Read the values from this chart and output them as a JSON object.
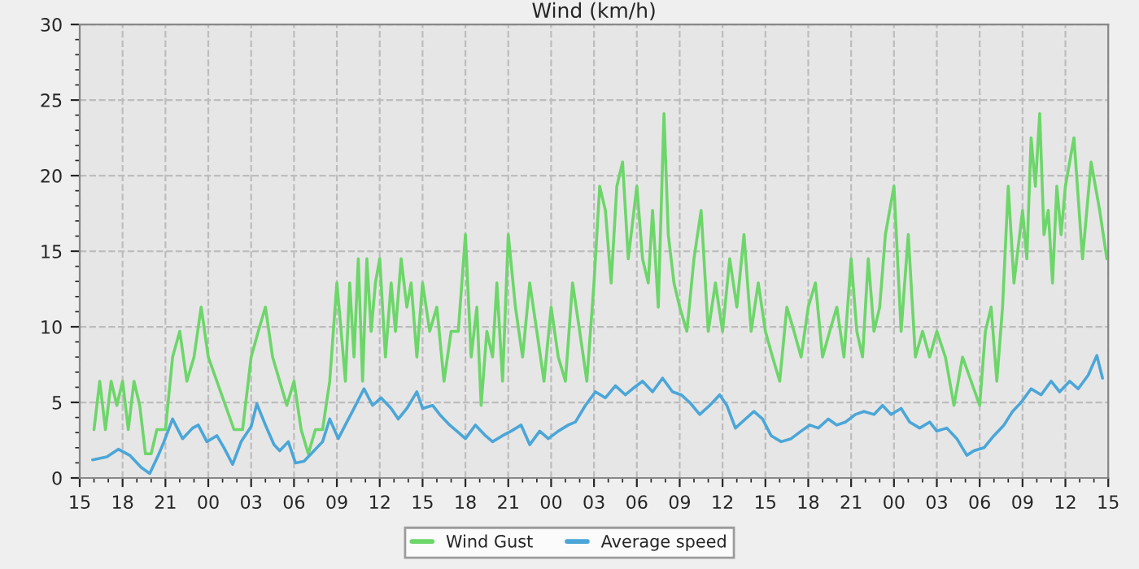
{
  "chart_data": {
    "type": "line",
    "title": "Wind (km/h)",
    "xlim": [
      15,
      87
    ],
    "ylim": [
      0,
      30
    ],
    "yticks": [
      0,
      5,
      10,
      15,
      20,
      25,
      30
    ],
    "xticks": [
      15,
      18,
      21,
      {
        "value": 24,
        "label": "00"
      },
      {
        "value": 27,
        "label": "03"
      },
      {
        "value": 30,
        "label": "06"
      },
      {
        "value": 33,
        "label": "09"
      },
      {
        "value": 36,
        "label": "12"
      },
      {
        "value": 39,
        "label": "15"
      },
      {
        "value": 42,
        "label": "18"
      },
      {
        "value": 45,
        "label": "21"
      },
      {
        "value": 48,
        "label": "00"
      },
      {
        "value": 51,
        "label": "03"
      },
      {
        "value": 54,
        "label": "06"
      },
      {
        "value": 57,
        "label": "09"
      },
      {
        "value": 60,
        "label": "12"
      },
      {
        "value": 63,
        "label": "15"
      },
      {
        "value": 66,
        "label": "18"
      },
      {
        "value": 69,
        "label": "21"
      },
      {
        "value": 72,
        "label": "00"
      },
      {
        "value": 75,
        "label": "03"
      },
      {
        "value": 78,
        "label": "06"
      },
      {
        "value": 81,
        "label": "09"
      },
      {
        "value": 84,
        "label": "12"
      },
      {
        "value": 87,
        "label": "15"
      }
    ],
    "grid": true,
    "legend": "bottom",
    "marker": "none",
    "line_style": "solid",
    "series": [
      {
        "name": "Wind Gust",
        "color": "#6dd66a",
        "x": [
          16,
          16.4,
          16.8,
          17.2,
          17.6,
          18,
          18.4,
          18.8,
          19.2,
          19.6,
          20,
          20.4,
          21,
          21.5,
          22,
          22.5,
          23,
          23.5,
          24,
          24.6,
          25.2,
          25.8,
          26.4,
          27,
          27.5,
          28,
          28.5,
          29,
          29.5,
          30,
          30.5,
          31,
          31.5,
          32,
          32.5,
          33,
          33.3,
          33.6,
          33.9,
          34.2,
          34.5,
          34.8,
          35.1,
          35.4,
          35.7,
          36,
          36.4,
          36.8,
          37.1,
          37.5,
          37.9,
          38.2,
          38.6,
          39,
          39.5,
          40,
          40.5,
          41,
          41.5,
          42,
          42.4,
          42.8,
          43.1,
          43.5,
          43.9,
          44.2,
          44.6,
          45,
          45.5,
          46,
          46.5,
          47,
          47.5,
          48,
          48.5,
          49,
          49.5,
          50,
          50.5,
          51,
          51.4,
          51.8,
          52.2,
          52.6,
          53,
          53.4,
          54,
          54.4,
          54.8,
          55.1,
          55.5,
          55.9,
          56.2,
          56.6,
          57,
          57.5,
          58,
          58.5,
          59,
          59.5,
          60,
          60.5,
          61,
          61.5,
          62,
          62.5,
          63,
          63.5,
          64,
          64.5,
          65,
          65.5,
          66,
          66.5,
          67,
          67.5,
          68,
          68.5,
          69,
          69.4,
          69.8,
          70.2,
          70.6,
          71,
          71.4,
          72,
          72.5,
          73,
          73.5,
          74,
          74.5,
          75,
          75.6,
          76.2,
          76.8,
          77.4,
          78,
          78.4,
          78.8,
          79.2,
          79.6,
          80,
          80.4,
          81,
          81.3,
          81.6,
          81.9,
          82.2,
          82.5,
          82.8,
          83.1,
          83.4,
          83.7,
          84,
          84.6,
          85.2,
          85.8,
          86.4,
          86.9
        ],
        "values": [
          3.2,
          6.4,
          3.2,
          6.4,
          4.8,
          6.4,
          3.2,
          6.4,
          4.8,
          1.6,
          1.6,
          3.2,
          3.2,
          8,
          9.7,
          6.4,
          8,
          11.3,
          8,
          6.4,
          4.8,
          3.2,
          3.2,
          8,
          9.7,
          11.3,
          8,
          6.4,
          4.8,
          6.4,
          3.2,
          1.6,
          3.2,
          3.2,
          6.4,
          12.9,
          9.7,
          6.4,
          12.9,
          8,
          14.5,
          6.4,
          14.5,
          9.7,
          12.9,
          14.5,
          8,
          12.9,
          9.7,
          14.5,
          11.3,
          12.9,
          8,
          12.9,
          9.7,
          11.3,
          6.4,
          9.7,
          9.7,
          16.1,
          8,
          11.3,
          4.8,
          9.7,
          8,
          12.9,
          6.4,
          16.1,
          11.3,
          8,
          12.9,
          9.7,
          6.4,
          11.3,
          8,
          6.4,
          12.9,
          9.7,
          6.4,
          12.9,
          19.3,
          17.7,
          12.9,
          19.3,
          20.9,
          14.5,
          19.3,
          14.5,
          12.9,
          17.7,
          11.3,
          24.1,
          16.1,
          12.9,
          11.3,
          9.7,
          14.5,
          17.7,
          9.7,
          12.9,
          9.7,
          14.5,
          11.3,
          16.1,
          9.7,
          12.9,
          9.7,
          8,
          6.4,
          11.3,
          9.7,
          8,
          11.3,
          12.9,
          8,
          9.7,
          11.3,
          8,
          14.5,
          9.7,
          8,
          14.5,
          9.7,
          11.3,
          16.1,
          19.3,
          9.7,
          16.1,
          8,
          9.7,
          8,
          9.7,
          8,
          4.8,
          8,
          6.4,
          4.8,
          9.7,
          11.3,
          6.4,
          11.3,
          19.3,
          12.9,
          17.7,
          14.5,
          22.5,
          19.3,
          24.1,
          16.1,
          17.7,
          12.9,
          19.3,
          16.1,
          19.3,
          22.5,
          14.5,
          20.9,
          17.7,
          14.5
        ]
      },
      {
        "name": "Average speed",
        "color": "#4ba6d8",
        "x": [
          15.9,
          16.9,
          17.7,
          18.5,
          19.3,
          19.9,
          20.5,
          20.9,
          21.5,
          22.2,
          22.9,
          23.3,
          23.9,
          24.6,
          25.1,
          25.7,
          26.3,
          27.0,
          27.4,
          28.0,
          28.6,
          29.0,
          29.6,
          30.1,
          30.7,
          31.4,
          32.0,
          32.5,
          33.1,
          33.7,
          34.2,
          34.9,
          35.5,
          36.1,
          36.8,
          37.3,
          37.9,
          38.6,
          39.0,
          39.7,
          40.2,
          40.9,
          41.4,
          42.0,
          42.7,
          43.4,
          43.9,
          44.6,
          45.2,
          45.9,
          46.5,
          47.2,
          47.8,
          48.5,
          49.2,
          49.7,
          50.4,
          51.1,
          51.8,
          52.5,
          53.2,
          53.7,
          54.4,
          55.1,
          55.8,
          56.5,
          57.1,
          57.7,
          58.4,
          59.1,
          59.8,
          60.3,
          60.9,
          61.6,
          62.2,
          62.8,
          63.4,
          64.1,
          64.8,
          65.5,
          66.1,
          66.7,
          67.4,
          68.0,
          68.6,
          69.3,
          69.9,
          70.6,
          71.2,
          71.8,
          72.5,
          73.1,
          73.8,
          74.5,
          75.0,
          75.7,
          76.4,
          77.1,
          77.6,
          78.3,
          79.0,
          79.7,
          80.3,
          80.9,
          81.6,
          82.3,
          83.0,
          83.6,
          84.3,
          84.9,
          85.6,
          86.2,
          86.6
        ],
        "values": [
          1.2,
          1.4,
          1.9,
          1.5,
          0.7,
          0.3,
          1.5,
          2.4,
          3.9,
          2.6,
          3.3,
          3.5,
          2.4,
          2.8,
          2.0,
          0.9,
          2.4,
          3.4,
          4.9,
          3.5,
          2.2,
          1.8,
          2.4,
          1.0,
          1.1,
          1.8,
          2.4,
          3.9,
          2.6,
          3.7,
          4.6,
          5.9,
          4.8,
          5.3,
          4.6,
          3.9,
          4.6,
          5.7,
          4.6,
          4.8,
          4.2,
          3.5,
          3.1,
          2.6,
          3.5,
          2.8,
          2.4,
          2.8,
          3.1,
          3.5,
          2.2,
          3.1,
          2.6,
          3.1,
          3.5,
          3.7,
          4.8,
          5.7,
          5.3,
          6.1,
          5.5,
          5.9,
          6.4,
          5.7,
          6.6,
          5.7,
          5.5,
          5.0,
          4.2,
          4.8,
          5.5,
          4.8,
          3.3,
          3.9,
          4.4,
          3.9,
          2.8,
          2.4,
          2.6,
          3.1,
          3.5,
          3.3,
          3.9,
          3.5,
          3.7,
          4.2,
          4.4,
          4.2,
          4.8,
          4.2,
          4.6,
          3.7,
          3.3,
          3.7,
          3.1,
          3.3,
          2.6,
          1.5,
          1.8,
          2.0,
          2.8,
          3.5,
          4.4,
          5.0,
          5.9,
          5.5,
          6.4,
          5.7,
          6.4,
          5.9,
          6.8,
          8.1,
          6.6
        ]
      }
    ]
  }
}
